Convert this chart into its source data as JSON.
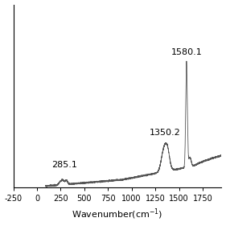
{
  "xlim": [
    -250,
    1950
  ],
  "ylim": [
    0,
    1.45
  ],
  "xticks": [
    -250,
    0,
    250,
    500,
    750,
    1000,
    1250,
    1500,
    1750
  ],
  "line_color": "#555555",
  "background_color": "#ffffff",
  "fontsize_label": 8,
  "fontsize_annot": 8,
  "fontsize_tick": 7,
  "peak_285_label": "285.1",
  "peak_1350_label": "1350.2",
  "peak_1580_label": "1580.1",
  "xlabel": "Wavenumber(cm$^{-1}$)"
}
